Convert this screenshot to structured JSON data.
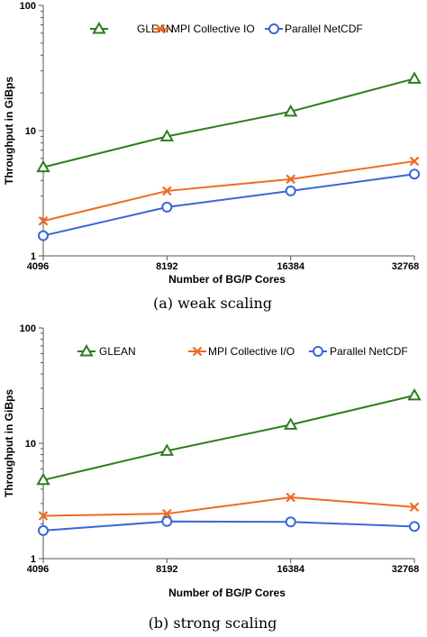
{
  "chart_data": [
    {
      "type": "line",
      "caption": "(a) weak scaling",
      "xlabel": "Number of BG/P Cores",
      "ylabel": "Throughput in GiBps",
      "x_scale": "log2",
      "y_scale": "log",
      "ylim": [
        1,
        100
      ],
      "x": [
        4096,
        8192,
        16384,
        32768
      ],
      "x_tick_labels": [
        "4096",
        "8192",
        "16384",
        "32768"
      ],
      "y_tick_labels": [
        "1",
        "10",
        "100"
      ],
      "legend_position": "top",
      "series": [
        {
          "name": "GLEAN",
          "color": "#2e7d1e",
          "marker": "triangle",
          "values": [
            5.1,
            9.0,
            14.2,
            26.0
          ]
        },
        {
          "name": "MPI Collective IO",
          "color": "#ee6b23",
          "marker": "x",
          "values": [
            1.9,
            3.3,
            4.1,
            5.7
          ]
        },
        {
          "name": "Parallel NetCDF",
          "color": "#3a66d6",
          "marker": "circle",
          "values": [
            1.45,
            2.45,
            3.3,
            4.5
          ]
        }
      ]
    },
    {
      "type": "line",
      "caption": "(b) strong scaling",
      "xlabel": "Number of BG/P Cores",
      "ylabel": "Throughput in GiBps",
      "x_scale": "log2",
      "y_scale": "log",
      "ylim": [
        1,
        100
      ],
      "x": [
        4096,
        8192,
        16384,
        32768
      ],
      "x_tick_labels": [
        "4096",
        "8192",
        "16384",
        "32768"
      ],
      "y_tick_labels": [
        "1",
        "10",
        "100"
      ],
      "legend_position": "top",
      "series": [
        {
          "name": "GLEAN",
          "color": "#2e7d1e",
          "marker": "triangle",
          "values": [
            4.8,
            8.6,
            14.5,
            26.0
          ]
        },
        {
          "name": "MPI Collective I/O",
          "color": "#ee6b23",
          "marker": "x",
          "values": [
            2.35,
            2.45,
            3.4,
            2.8
          ]
        },
        {
          "name": "Parallel NetCDF",
          "color": "#3a66d6",
          "marker": "circle",
          "values": [
            1.75,
            2.1,
            2.08,
            1.9
          ]
        }
      ]
    }
  ]
}
